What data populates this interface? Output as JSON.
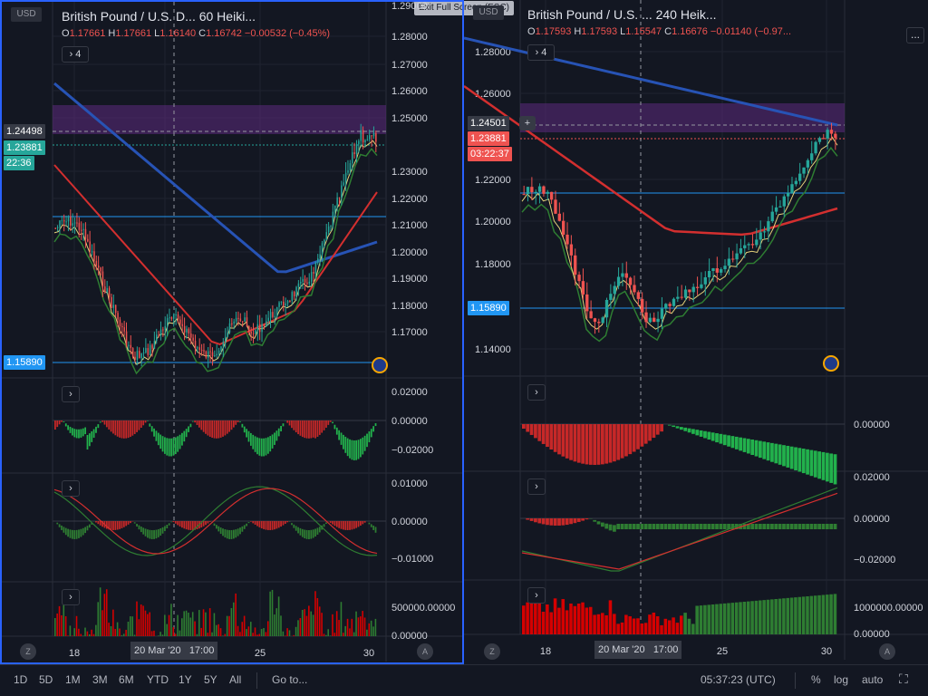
{
  "window": {
    "exit_fullscreen": "Exit Full Screen (ESC)"
  },
  "charts": [
    {
      "title": "British Pound / U.S. D...  60  Heiki...",
      "ohlc": {
        "o_label": "O",
        "o": "1.17661",
        "h_label": "H",
        "h": "1.17661",
        "l_label": "L",
        "l": "1.16140",
        "c_label": "C",
        "c": "1.16742",
        "change": "−0.00532 (−0.45%)"
      },
      "collapse_label": "4",
      "currency": "USD",
      "price_ticks": [
        "1.28000",
        "1.27000",
        "1.26000",
        "1.25000",
        "1.23000",
        "1.22000",
        "1.21000",
        "1.20000",
        "1.19000",
        "1.18000",
        "1.17000"
      ],
      "price_top_partial": "1.29000",
      "tags": {
        "high": "1.24498",
        "current": "1.23881",
        "countdown": "22:36",
        "support": "1.15890"
      },
      "osc1_ticks": [
        "0.02000",
        "0.00000",
        "−0.02000"
      ],
      "osc2_ticks": [
        "0.01000",
        "0.00000",
        "−0.01000"
      ],
      "vol_ticks": [
        "500000.00000",
        "0.00000"
      ],
      "time_ticks": [
        "18",
        "25",
        "30"
      ],
      "crosshair_date": "20 Mar '20",
      "crosshair_time": "17:00",
      "corner_left": "Z",
      "corner_right": "A"
    },
    {
      "title": "British Pound / U.S. ...  240  Heik...",
      "ohlc": {
        "o_label": "O",
        "o": "1.17593",
        "h_label": "H",
        "h": "1.17593",
        "l_label": "L",
        "l": "1.15547",
        "c_label": "C",
        "c": "1.16676",
        "change": "−0.01140 (−0.97..."
      },
      "collapse_label": "4",
      "currency": "USD",
      "more_label": "...",
      "plus_label": "+",
      "price_ticks": [
        "1.28000",
        "1.26000",
        "1.22000",
        "1.20000",
        "1.18000",
        "1.14000"
      ],
      "tags": {
        "high": "1.24501",
        "current": "1.23881",
        "countdown": "03:22:37",
        "support": "1.15890"
      },
      "osc1_ticks": [
        "0.00000"
      ],
      "osc2_ticks": [
        "0.02000",
        "0.00000",
        "−0.02000"
      ],
      "vol_ticks": [
        "1000000.00000",
        "0.00000"
      ],
      "time_ticks": [
        "18",
        "25",
        "30"
      ],
      "crosshair_date": "20 Mar '20",
      "crosshair_time": "17:00",
      "corner_left": "Z",
      "corner_right": "A"
    }
  ],
  "bottom": {
    "ranges": [
      "1D",
      "5D",
      "1M",
      "3M",
      "6M",
      "YTD",
      "1Y",
      "5Y",
      "All"
    ],
    "goto": "Go to...",
    "clock": "05:37:23 (UTC)",
    "percent": "%",
    "log": "log",
    "auto": "auto"
  },
  "colors": {
    "bg": "#131722",
    "up": "#26a69a",
    "down": "#ef5350",
    "ma_blue": "#2753b5",
    "ma_red": "#d32f2f",
    "ma_green": "#2e7d32",
    "ma_yellow": "#e6d27a",
    "zone": "#5c2a7e",
    "frame": "#2962ff"
  }
}
